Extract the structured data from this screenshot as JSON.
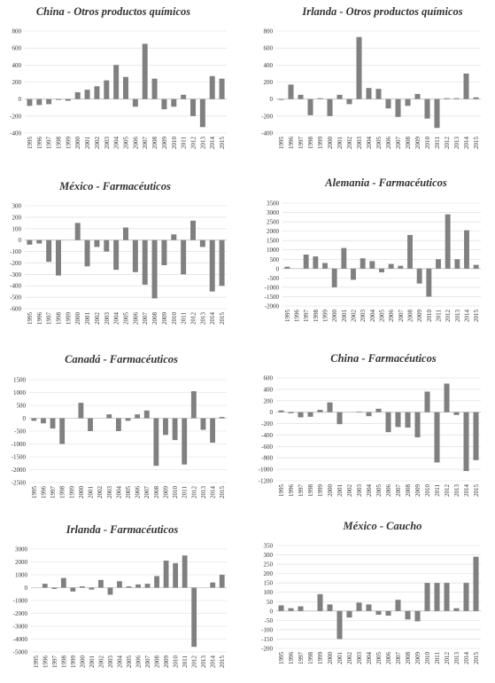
{
  "chart_data": [
    {
      "type": "bar",
      "title": "China - Otros productos químicos",
      "categories": [
        "1995",
        "1996",
        "1997",
        "1998",
        "1999",
        "2000",
        "2001",
        "2002",
        "2003",
        "2004",
        "2005",
        "2006",
        "2007",
        "2008",
        "2009",
        "2010",
        "2011",
        "2012",
        "2013",
        "2014",
        "2015"
      ],
      "values": [
        -80,
        -70,
        -60,
        -10,
        -20,
        80,
        110,
        150,
        220,
        400,
        260,
        -90,
        650,
        240,
        -120,
        -90,
        50,
        -200,
        -330,
        270,
        240
      ],
      "yticks": [
        -400,
        -200,
        0,
        200,
        400,
        600,
        800
      ],
      "ylim": [
        -400,
        800
      ],
      "bar_color": "#808080"
    },
    {
      "type": "bar",
      "title": "Irlanda - Otros productos químicos",
      "categories": [
        "1995",
        "1996",
        "1997",
        "1998",
        "1999",
        "2000",
        "2001",
        "2002",
        "2003",
        "2004",
        "2005",
        "2006",
        "2007",
        "2008",
        "2009",
        "2010",
        "2011",
        "2012",
        "2013",
        "2014",
        "2015"
      ],
      "values": [
        -10,
        170,
        50,
        -190,
        10,
        -200,
        50,
        -60,
        730,
        130,
        120,
        -110,
        -210,
        -80,
        60,
        -230,
        -340,
        10,
        10,
        300,
        20
      ],
      "yticks": [
        -400,
        -200,
        0,
        200,
        400,
        600,
        800
      ],
      "ylim": [
        -400,
        800
      ],
      "bar_color": "#808080"
    },
    {
      "type": "bar",
      "title": "México - Farmacéuticos",
      "categories": [
        "1995",
        "1996",
        "1997",
        "1998",
        "1999",
        "2000",
        "2001",
        "2002",
        "2003",
        "2004",
        "2005",
        "2006",
        "2007",
        "2008",
        "2009",
        "2010",
        "2011",
        "2012",
        "2013",
        "2014",
        "2015"
      ],
      "values": [
        -40,
        -30,
        -190,
        -310,
        0,
        150,
        -230,
        -60,
        -100,
        -260,
        110,
        -280,
        -390,
        -510,
        -220,
        50,
        -300,
        170,
        -60,
        -450,
        -400
      ],
      "yticks": [
        -600,
        -500,
        -400,
        -300,
        -200,
        -100,
        0,
        100,
        200,
        300
      ],
      "ylim": [
        -600,
        300
      ],
      "bar_color": "#808080"
    },
    {
      "type": "bar",
      "title": "Alemania - Farmacéuticos",
      "categories": [
        "1995",
        "1996",
        "1997",
        "1998",
        "1999",
        "2000",
        "2001",
        "2002",
        "2003",
        "2004",
        "2005",
        "2006",
        "2007",
        "2008",
        "2009",
        "2010",
        "2011",
        "2012",
        "2013",
        "2014",
        "2015"
      ],
      "values": [
        100,
        0,
        750,
        650,
        300,
        -1000,
        1100,
        -600,
        550,
        400,
        -200,
        250,
        150,
        1800,
        -800,
        -1500,
        500,
        2900,
        500,
        2050,
        200
      ],
      "yticks": [
        -2000,
        -1500,
        -1000,
        -500,
        0,
        500,
        1000,
        1500,
        2000,
        2500,
        3000,
        3500
      ],
      "ylim": [
        -2000,
        3500
      ],
      "bar_color": "#808080"
    },
    {
      "type": "bar",
      "title": "Canadá - Farmacéuticos",
      "categories": [
        "1995",
        "1996",
        "1997",
        "1998",
        "1999",
        "2000",
        "2001",
        "2002",
        "2003",
        "2004",
        "2005",
        "2006",
        "2007",
        "2008",
        "2009",
        "2010",
        "2011",
        "2012",
        "2013",
        "2014",
        "2015"
      ],
      "values": [
        -100,
        -200,
        -400,
        -1000,
        0,
        600,
        -500,
        0,
        150,
        -500,
        -100,
        150,
        300,
        -1850,
        -650,
        -850,
        -1800,
        1050,
        -450,
        -950,
        50
      ],
      "yticks": [
        -2500,
        -2000,
        -1500,
        -1000,
        -500,
        0,
        500,
        1000,
        1500
      ],
      "ylim": [
        -2500,
        1500
      ],
      "bar_color": "#808080"
    },
    {
      "type": "bar",
      "title": "China - Farmacéuticos",
      "categories": [
        "1995",
        "1996",
        "1997",
        "1998",
        "1999",
        "2000",
        "2001",
        "2002",
        "2003",
        "2004",
        "2005",
        "2006",
        "2007",
        "2008",
        "2009",
        "2010",
        "2011",
        "2012",
        "2013",
        "2014",
        "2015"
      ],
      "values": [
        30,
        -20,
        -90,
        -80,
        40,
        170,
        -210,
        0,
        10,
        -70,
        60,
        -350,
        -260,
        -270,
        -440,
        360,
        -880,
        500,
        -50,
        -1030,
        -840
      ],
      "yticks": [
        -1200,
        -1000,
        -800,
        -600,
        -400,
        -200,
        0,
        200,
        400,
        600
      ],
      "ylim": [
        -1200,
        600
      ],
      "bar_color": "#808080"
    },
    {
      "type": "bar",
      "title": "Irlanda - Farmacéuticos",
      "categories": [
        "1995",
        "1996",
        "1997",
        "1998",
        "1999",
        "2000",
        "2001",
        "2002",
        "2003",
        "2004",
        "2005",
        "2006",
        "2007",
        "2008",
        "2009",
        "2010",
        "2011",
        "2012",
        "2013",
        "2014",
        "2015"
      ],
      "values": [
        0,
        300,
        -100,
        750,
        -300,
        100,
        -150,
        600,
        -550,
        500,
        100,
        250,
        300,
        900,
        2100,
        1900,
        2500,
        -4600,
        0,
        400,
        1000
      ],
      "yticks": [
        -5000,
        -4000,
        -3000,
        -2000,
        -1000,
        0,
        1000,
        2000,
        3000
      ],
      "ylim": [
        -5000,
        3000
      ],
      "bar_color": "#808080"
    },
    {
      "type": "bar",
      "title": "México - Caucho",
      "categories": [
        "1995",
        "1996",
        "1997",
        "1998",
        "1999",
        "2000",
        "2001",
        "2002",
        "2003",
        "2004",
        "2005",
        "2006",
        "2007",
        "2008",
        "2009",
        "2010",
        "2011",
        "2012",
        "2013",
        "2014",
        "2015"
      ],
      "values": [
        30,
        15,
        25,
        0,
        90,
        35,
        -150,
        -35,
        45,
        35,
        -20,
        -25,
        60,
        -45,
        -55,
        150,
        150,
        150,
        15,
        150,
        290
      ],
      "yticks": [
        -200,
        -150,
        -100,
        -50,
        0,
        50,
        100,
        150,
        200,
        250,
        300,
        350
      ],
      "ylim": [
        -200,
        350
      ],
      "bar_color": "#808080"
    }
  ]
}
